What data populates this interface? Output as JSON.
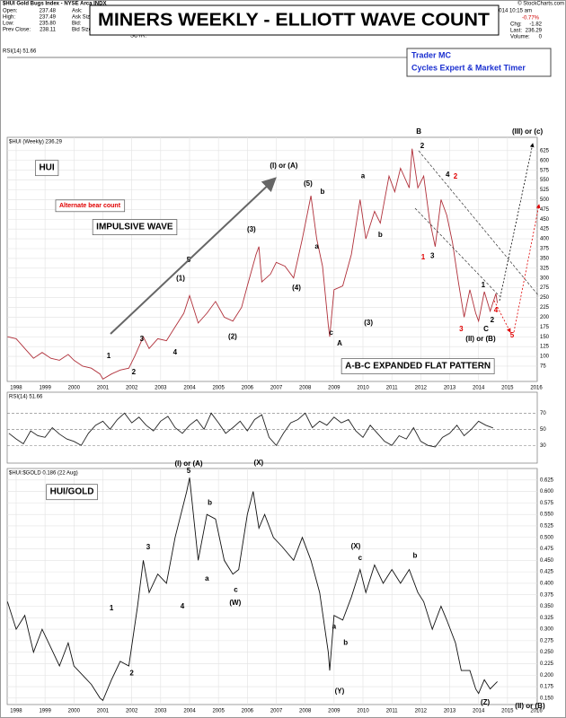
{
  "header": {
    "symbol": "$HUI Gold Bugs Index - NYSE Arca INDX",
    "quote_left": [
      [
        "Open:",
        "237.48"
      ],
      [
        "High:",
        "237.49"
      ],
      [
        "Low:",
        "235.80"
      ],
      [
        "Prev Close:",
        "238.11"
      ]
    ],
    "quote_mid": [
      "Ask:",
      "Ask Size:",
      "Bid:",
      "Bid Size:",
      "VWAP:",
      "SCTR:"
    ],
    "date": "Aug-2014 10:15 am",
    "change_pct": "-0.77%",
    "quote_right": [
      [
        "Chg:",
        "-1.82"
      ],
      [
        "Last:",
        "236.29"
      ],
      [
        "Volume:",
        "0"
      ]
    ],
    "copyright": "© StockCharts.com",
    "title": "MINERS WEEKLY - ELLIOTT WAVE COUNT",
    "author": [
      "Trader MC",
      "Cycles Expert & Market Timer"
    ],
    "rsi_label": "RSI(14) 51.66"
  },
  "chart_data": [
    {
      "type": "line",
      "label": "$HUI (Weekly) 236.29",
      "color": "#b0303a",
      "grid": true,
      "x": [
        1997.7,
        1998,
        1998.3,
        1998.6,
        1998.9,
        1999.2,
        1999.5,
        1999.8,
        2000,
        2000.3,
        2000.6,
        2000.9,
        2001,
        2001.3,
        2001.6,
        2001.9,
        2002.1,
        2002.4,
        2002.6,
        2002.9,
        2003.2,
        2003.5,
        2003.8,
        2004,
        2004.3,
        2004.6,
        2004.9,
        2005.2,
        2005.5,
        2005.8,
        2006,
        2006.3,
        2006.4,
        2006.5,
        2006.8,
        2007,
        2007.3,
        2007.6,
        2007.9,
        2008.2,
        2008.4,
        2008.6,
        2008.8,
        2008.85,
        2009,
        2009.3,
        2009.6,
        2009.9,
        2010.1,
        2010.4,
        2010.6,
        2010.9,
        2011.1,
        2011.3,
        2011.6,
        2011.7,
        2011.9,
        2012.1,
        2012.3,
        2012.5,
        2012.7,
        2012.9,
        2013.1,
        2013.3,
        2013.5,
        2013.7,
        2013.9,
        2014,
        2014.2,
        2014.4,
        2014.6,
        2014.65
      ],
      "values": [
        150,
        145,
        120,
        95,
        110,
        95,
        90,
        105,
        90,
        75,
        70,
        55,
        42,
        55,
        65,
        70,
        100,
        150,
        120,
        145,
        140,
        175,
        210,
        255,
        185,
        210,
        240,
        200,
        190,
        225,
        280,
        360,
        380,
        290,
        310,
        340,
        330,
        300,
        400,
        510,
        400,
        330,
        180,
        150,
        270,
        280,
        360,
        500,
        400,
        470,
        440,
        560,
        520,
        580,
        530,
        630,
        530,
        560,
        450,
        380,
        500,
        460,
        390,
        290,
        200,
        270,
        210,
        190,
        265,
        215,
        260,
        236.29
      ],
      "xlim": [
        1997.69,
        2016.03
      ],
      "xticks": [
        1998,
        1999,
        2000,
        2001,
        2002,
        2003,
        2004,
        2005,
        2006,
        2007,
        2008,
        2009,
        2010,
        2011,
        2012,
        2013,
        2014,
        2015,
        2016
      ],
      "ylim": [
        36,
        659
      ],
      "yticks": [
        75,
        100,
        125,
        150,
        175,
        200,
        225,
        250,
        275,
        300,
        325,
        350,
        375,
        400,
        425,
        450,
        475,
        500,
        525,
        550,
        575,
        600,
        625
      ],
      "annotations": [
        {
          "text": "HUI",
          "x": 1999.06,
          "y": 581,
          "box": true
        },
        {
          "text": "Alternate bear count",
          "x": 2000.55,
          "y": 485,
          "color": "#e00000",
          "box": true
        },
        {
          "text": "IMPULSIVE WAVE",
          "x": 2002.1,
          "y": 430,
          "box": true
        },
        {
          "text": "A-B-C EXPANDED FLAT PATTERN",
          "x": 2011.9,
          "y": 75,
          "box": true
        },
        {
          "text": "(I) or (A)",
          "x": 2007.26,
          "y": 586
        },
        {
          "text": "(III) or (c)",
          "x": 2015.69,
          "y": 673
        },
        {
          "text": "(II) or (B)",
          "x": 2014.07,
          "y": 144
        },
        {
          "text": "B",
          "x": 2011.93,
          "y": 673
        },
        {
          "text": "A",
          "x": 2009.19,
          "y": 132
        },
        {
          "text": "C",
          "x": 2014.26,
          "y": 169
        },
        {
          "text": "(1)",
          "x": 2003.69,
          "y": 299
        },
        {
          "text": "(2)",
          "x": 2005.49,
          "y": 150
        },
        {
          "text": "(3)",
          "x": 2006.14,
          "y": 423
        },
        {
          "text": "(4)",
          "x": 2007.7,
          "y": 274
        },
        {
          "text": "(5)",
          "x": 2008.1,
          "y": 540
        },
        {
          "text": "(3)",
          "x": 2010.19,
          "y": 185
        },
        {
          "text": "1",
          "x": 2001.2,
          "y": 100
        },
        {
          "text": "2",
          "x": 2002.07,
          "y": 59
        },
        {
          "text": "3",
          "x": 2002.35,
          "y": 144
        },
        {
          "text": "4",
          "x": 2003.5,
          "y": 109
        },
        {
          "text": "5",
          "x": 2003.97,
          "y": 345
        },
        {
          "text": "2",
          "x": 2012.05,
          "y": 636
        },
        {
          "text": "4",
          "x": 2012.93,
          "y": 563
        },
        {
          "text": "2",
          "x": 2013.2,
          "y": 558,
          "color": "#e00000"
        },
        {
          "text": "1",
          "x": 2012.08,
          "y": 352,
          "color": "#e00000"
        },
        {
          "text": "3",
          "x": 2012.4,
          "y": 356
        },
        {
          "text": "3",
          "x": 2013.4,
          "y": 169,
          "color": "#e00000"
        },
        {
          "text": "4",
          "x": 2014.6,
          "y": 217,
          "color": "#e00000"
        },
        {
          "text": "5",
          "x": 2015.16,
          "y": 153,
          "color": "#e00000"
        },
        {
          "text": "1",
          "x": 2014.16,
          "y": 281
        },
        {
          "text": "2",
          "x": 2014.47,
          "y": 192
        },
        {
          "text": "a",
          "x": 2010.0,
          "y": 560
        },
        {
          "text": "b",
          "x": 2010.6,
          "y": 410
        },
        {
          "text": "a",
          "x": 2008.4,
          "y": 380
        },
        {
          "text": "b",
          "x": 2008.6,
          "y": 520
        },
        {
          "text": "c",
          "x": 2008.9,
          "y": 160
        }
      ]
    },
    {
      "type": "line",
      "label": "RSI(14) 51.66",
      "color": "#222222",
      "grid": true,
      "x": [
        1997.75,
        1998,
        1998.25,
        1998.5,
        1998.75,
        1999,
        1999.25,
        1999.5,
        1999.75,
        2000,
        2000.25,
        2000.5,
        2000.75,
        2001,
        2001.25,
        2001.5,
        2001.75,
        2002,
        2002.25,
        2002.5,
        2002.75,
        2003,
        2003.25,
        2003.5,
        2003.75,
        2004,
        2004.25,
        2004.5,
        2004.75,
        2005,
        2005.25,
        2005.5,
        2005.75,
        2006,
        2006.25,
        2006.5,
        2006.75,
        2007,
        2007.25,
        2007.5,
        2007.75,
        2008,
        2008.25,
        2008.5,
        2008.75,
        2009,
        2009.25,
        2009.5,
        2009.75,
        2010,
        2010.25,
        2010.5,
        2010.75,
        2011,
        2011.25,
        2011.5,
        2011.75,
        2012,
        2012.25,
        2012.5,
        2012.75,
        2013,
        2013.25,
        2013.5,
        2013.75,
        2014,
        2014.25,
        2014.5
      ],
      "values": [
        45,
        38,
        32,
        48,
        42,
        40,
        52,
        44,
        38,
        35,
        30,
        45,
        55,
        60,
        50,
        62,
        70,
        58,
        65,
        55,
        48,
        60,
        66,
        52,
        45,
        55,
        62,
        50,
        70,
        58,
        45,
        52,
        60,
        48,
        62,
        68,
        40,
        30,
        45,
        58,
        62,
        70,
        52,
        60,
        55,
        65,
        58,
        62,
        48,
        40,
        55,
        45,
        35,
        30,
        42,
        38,
        52,
        35,
        30,
        28,
        40,
        45,
        55,
        42,
        50,
        60,
        55,
        51.66
      ],
      "xlim": [
        1997.69,
        2016.03
      ],
      "ylim": [
        8,
        96
      ],
      "yticks": [
        30,
        50,
        70
      ]
    },
    {
      "type": "line",
      "label": "$HUI:$GOLD 0.186 (22 Aug)",
      "color": "#111111",
      "grid": true,
      "x": [
        1997.7,
        1998,
        1998.3,
        1998.6,
        1998.9,
        1999.2,
        1999.5,
        1999.8,
        2000,
        2000.3,
        2000.6,
        2000.9,
        2001,
        2001.3,
        2001.6,
        2001.9,
        2002.2,
        2002.4,
        2002.6,
        2002.9,
        2003.2,
        2003.5,
        2003.9,
        2004,
        2004.3,
        2004.6,
        2004.9,
        2005.2,
        2005.5,
        2005.7,
        2006,
        2006.2,
        2006.4,
        2006.6,
        2006.9,
        2007.2,
        2007.6,
        2007.9,
        2008.2,
        2008.5,
        2008.8,
        2008.85,
        2009,
        2009.3,
        2009.6,
        2009.9,
        2010.1,
        2010.4,
        2010.7,
        2011,
        2011.3,
        2011.6,
        2011.9,
        2012.1,
        2012.4,
        2012.7,
        2012.9,
        2013.2,
        2013.4,
        2013.7,
        2013.9,
        2014,
        2014.2,
        2014.4,
        2014.65
      ],
      "values": [
        0.36,
        0.3,
        0.33,
        0.25,
        0.3,
        0.26,
        0.22,
        0.27,
        0.22,
        0.2,
        0.18,
        0.15,
        0.145,
        0.19,
        0.23,
        0.22,
        0.35,
        0.45,
        0.38,
        0.42,
        0.4,
        0.5,
        0.6,
        0.63,
        0.45,
        0.55,
        0.54,
        0.45,
        0.42,
        0.43,
        0.55,
        0.6,
        0.52,
        0.55,
        0.5,
        0.48,
        0.45,
        0.5,
        0.45,
        0.38,
        0.25,
        0.21,
        0.33,
        0.32,
        0.37,
        0.43,
        0.38,
        0.44,
        0.4,
        0.43,
        0.4,
        0.43,
        0.38,
        0.36,
        0.3,
        0.35,
        0.32,
        0.27,
        0.21,
        0.21,
        0.17,
        0.16,
        0.19,
        0.17,
        0.186
      ],
      "xlim": [
        1997.69,
        2016.03
      ],
      "xticks": [
        1998,
        1999,
        2000,
        2001,
        2002,
        2003,
        2004,
        2005,
        2006,
        2007,
        2008,
        2009,
        2010,
        2011,
        2012,
        2013,
        2014,
        2015,
        2016
      ],
      "ylim": [
        0.136,
        0.65
      ],
      "yticks": [
        {
          "value": 0.15,
          "label": "0.150"
        },
        0.175,
        {
          "value": 0.2,
          "label": "0.200"
        },
        0.225,
        {
          "value": 0.25,
          "label": "0.250"
        },
        0.275,
        {
          "value": 0.3,
          "label": "0.300"
        },
        0.325,
        {
          "value": 0.35,
          "label": "0.350"
        },
        0.375,
        {
          "value": 0.4,
          "label": "0.400"
        },
        0.425,
        {
          "value": 0.45,
          "label": "0.450"
        },
        0.475,
        {
          "value": 0.5,
          "label": "0.500"
        },
        0.525,
        {
          "value": 0.55,
          "label": "0.550"
        },
        0.575,
        {
          "value": 0.6,
          "label": "0.600"
        },
        0.625
      ],
      "annotations": [
        {
          "text": "HUI/GOLD",
          "x": 1999.93,
          "y": 0.599,
          "box": true
        },
        {
          "text": "(I) or (A)",
          "x": 2003.97,
          "y": 0.66
        },
        {
          "text": "5",
          "x": 2003.97,
          "y": 0.644
        },
        {
          "text": "(X)",
          "x": 2006.39,
          "y": 0.662
        },
        {
          "text": "(W)",
          "x": 2005.58,
          "y": 0.357
        },
        {
          "text": "(Y)",
          "x": 2009.19,
          "y": 0.165
        },
        {
          "text": "(X)",
          "x": 2009.75,
          "y": 0.48
        },
        {
          "text": "(Z)",
          "x": 2014.23,
          "y": 0.14
        },
        {
          "text": "(II) or (B)",
          "x": 2015.78,
          "y": 0.132
        },
        {
          "text": "1",
          "x": 2001.3,
          "y": 0.345
        },
        {
          "text": "2",
          "x": 2002.0,
          "y": 0.204
        },
        {
          "text": "3",
          "x": 2002.57,
          "y": 0.478
        },
        {
          "text": "4",
          "x": 2003.75,
          "y": 0.349
        },
        {
          "text": "a",
          "x": 2004.6,
          "y": 0.41
        },
        {
          "text": "b",
          "x": 2004.7,
          "y": 0.575
        },
        {
          "text": "c",
          "x": 2005.6,
          "y": 0.385
        },
        {
          "text": "a",
          "x": 2009.0,
          "y": 0.305
        },
        {
          "text": "b",
          "x": 2009.4,
          "y": 0.27
        },
        {
          "text": "b",
          "x": 2011.8,
          "y": 0.46
        },
        {
          "text": "c",
          "x": 2009.9,
          "y": 0.455
        }
      ]
    }
  ]
}
